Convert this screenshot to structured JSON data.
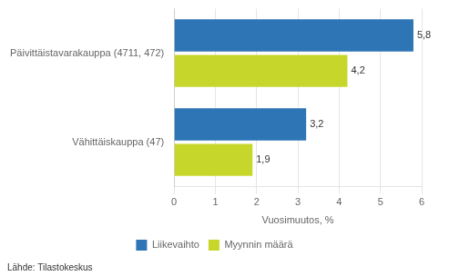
{
  "chart_data": {
    "type": "bar",
    "orientation": "horizontal",
    "categories": [
      "Päivittäistavarakauppa (4711, 472)",
      "Vähittäiskauppa (47)"
    ],
    "series": [
      {
        "name": "Liikevaihto",
        "color": "#2e75b6",
        "values": [
          5.8,
          3.2
        ],
        "value_labels": [
          "5,8",
          "3,2"
        ]
      },
      {
        "name": "Myynnin määrä",
        "color": "#c7d62b",
        "values": [
          4.2,
          1.9
        ],
        "value_labels": [
          "4,2",
          "1,9"
        ]
      }
    ],
    "xlabel": "Vuosimuutos, %",
    "xlim": [
      0,
      6
    ],
    "xticks": [
      0,
      1,
      2,
      3,
      4,
      5,
      6
    ],
    "grid": true,
    "legend": "bottom",
    "data_labels": true,
    "source": "Lähde: Tilastokeskus"
  }
}
